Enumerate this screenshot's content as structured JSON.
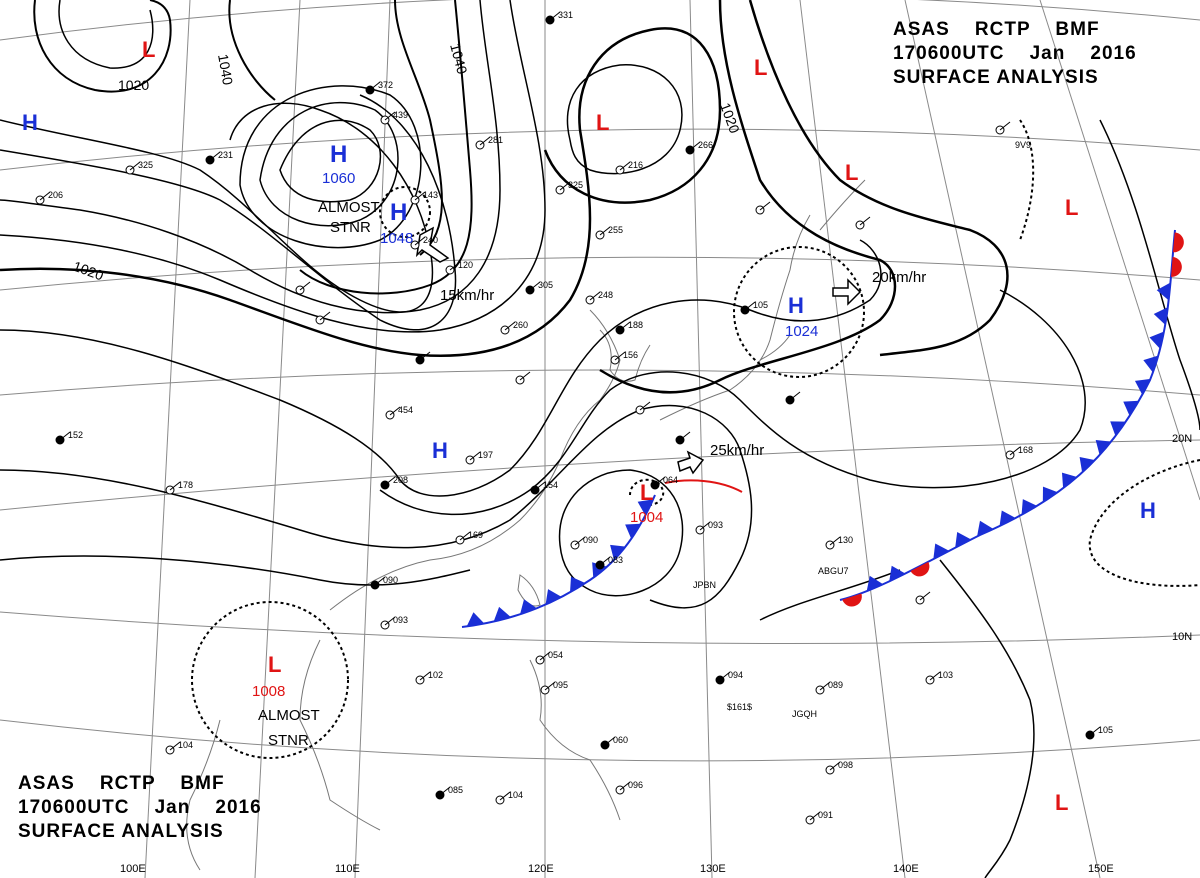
{
  "header_top": {
    "line1": "ASAS    RCTP    BMF",
    "line2": "170600UTC    Jan    2016",
    "line3": "SURFACE ANALYSIS"
  },
  "header_bottom": {
    "line1": "ASAS    RCTP    BMF",
    "line2": "170600UTC    Jan    2016",
    "line3": "SURFACE ANALYSIS"
  },
  "colors": {
    "high": "#1a2fd6",
    "low": "#e01414",
    "isobar": "#000000",
    "grid": "#8a8a8a",
    "coast": "#777777"
  },
  "pressure_centers": [
    {
      "type": "H",
      "label": "H",
      "value": "1060",
      "color": "blue"
    },
    {
      "type": "H",
      "label": "H",
      "value": "1048",
      "color": "blue"
    },
    {
      "type": "H",
      "label": "H",
      "value": "1024",
      "color": "blue"
    },
    {
      "type": "H",
      "label": "H",
      "value": "",
      "color": "blue"
    },
    {
      "type": "H",
      "label": "H",
      "value": "",
      "color": "blue"
    },
    {
      "type": "H",
      "label": "H",
      "value": "",
      "color": "blue"
    },
    {
      "type": "L",
      "label": "L",
      "value": "1004",
      "color": "red"
    },
    {
      "type": "L",
      "label": "L",
      "value": "1008",
      "color": "red"
    },
    {
      "type": "L",
      "label": "L",
      "value": "",
      "color": "red"
    },
    {
      "type": "L",
      "label": "L",
      "value": "",
      "color": "red"
    },
    {
      "type": "L",
      "label": "L",
      "value": "",
      "color": "red"
    },
    {
      "type": "L",
      "label": "L",
      "value": "",
      "color": "red"
    },
    {
      "type": "L",
      "label": "L",
      "value": "",
      "color": "red"
    },
    {
      "type": "L",
      "label": "L",
      "value": "",
      "color": "red"
    }
  ],
  "isobar_labels": [
    "1040",
    "1040",
    "1020",
    "1020",
    "1020"
  ],
  "motion_labels": [
    "15km/hr",
    "20km/hr",
    "25km/hr"
  ],
  "stationary_notes": [
    {
      "line1": "ALMOST",
      "line2": "STNR"
    },
    {
      "line1": "ALMOST",
      "line2": "STNR"
    }
  ],
  "lat_labels": [
    "20N",
    "10N"
  ],
  "lon_labels": [
    "100E",
    "110E",
    "120E",
    "130E",
    "140E",
    "150E"
  ],
  "ship_calls": [
    "JPBN",
    "JGQH",
    "$161$",
    "ABGU7",
    "9V9"
  ],
  "station_numbers": [
    "331",
    "281",
    "216",
    "266",
    "325",
    "255",
    "305",
    "248",
    "260",
    "188",
    "156",
    "197",
    "154",
    "169",
    "178",
    "152",
    "168",
    "130",
    "064",
    "093",
    "090",
    "083",
    "054",
    "095",
    "060",
    "096",
    "102",
    "094",
    "089",
    "103",
    "105",
    "098",
    "091",
    "085",
    "104",
    "104",
    "090",
    "093",
    "143",
    "105",
    "120",
    "240",
    "372",
    "439",
    "454",
    "208",
    "206",
    "325",
    "231"
  ]
}
